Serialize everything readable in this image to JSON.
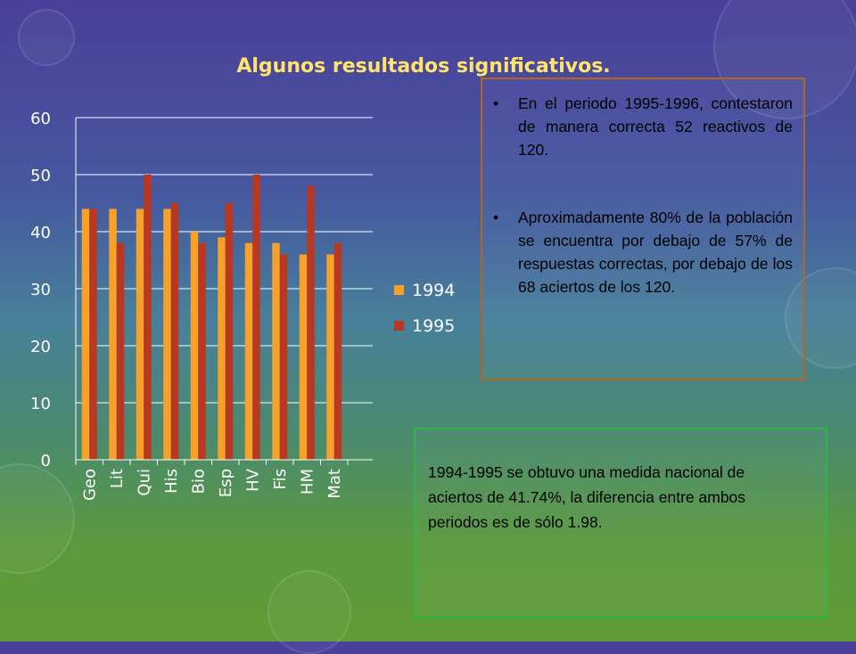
{
  "slide": {
    "title": "Algunos resultados significativos.",
    "note_box": {
      "items": [
        "En el periodo 1995-1996, contestaron de manera correcta 52 reactivos de 120.",
        "Aproximadamente 80% de la población se encuentra por debajo de 57% de respuestas correctas, por debajo de los 68 aciertos de los 120."
      ]
    },
    "summary_box": {
      "text": "1994-1995 se obtuvo una medida nacional de aciertos de 41.74%, la diferencia entre ambos periodos es de sólo 1.98."
    }
  },
  "colors": {
    "series_1994": "#f7a02a",
    "series_1995": "#b83822",
    "title": "#ffe36a",
    "note_border": "#b5651d",
    "summary_border": "#2fb64a"
  },
  "chart_data": {
    "type": "bar",
    "categories": [
      "Geo",
      "Lit",
      "Qui",
      "His",
      "Bio",
      "Esp",
      "HV",
      "Fis",
      "HM",
      "Mat"
    ],
    "series": [
      {
        "name": "1994",
        "values": [
          44,
          44,
          44,
          44,
          40,
          39,
          38,
          38,
          36,
          36
        ]
      },
      {
        "name": "1995",
        "values": [
          44,
          38,
          50,
          45,
          38,
          45,
          50,
          36,
          48,
          38
        ]
      }
    ],
    "ylim": [
      0,
      60
    ],
    "yticks": [
      0,
      10,
      20,
      30,
      40,
      50,
      60
    ],
    "grid": true,
    "legend": "right"
  }
}
